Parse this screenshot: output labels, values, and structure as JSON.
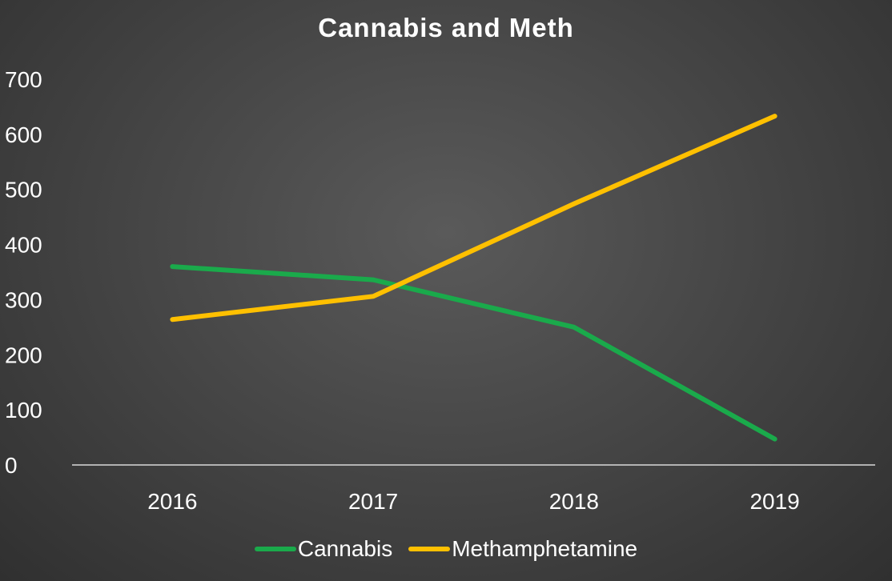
{
  "chart_data": {
    "type": "line",
    "title": "Cannabis and Meth",
    "categories": [
      "2016",
      "2017",
      "2018",
      "2019"
    ],
    "series": [
      {
        "name": "Cannabis",
        "values": [
          360,
          336,
          250,
          47
        ],
        "color": "#1aaa4b"
      },
      {
        "name": "Methamphetamine",
        "values": [
          264,
          306,
          474,
          633
        ],
        "color": "#ffc000"
      }
    ],
    "ylim": [
      0,
      700
    ],
    "yticks": [
      "0",
      "100",
      "200",
      "300",
      "400",
      "500",
      "600",
      "700"
    ],
    "xlabel": "",
    "ylabel": "",
    "grid": false,
    "legend_position": "bottom"
  }
}
